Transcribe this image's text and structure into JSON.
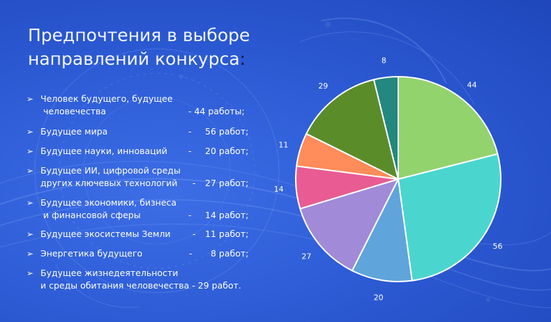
{
  "title": "Предпочтения в выборе направлений конкурса",
  "title_colon": ":",
  "bullet_glyph": "➢",
  "bullets": [
    {
      "lines": [
        "Человек будущего, будущее",
        " человечества",
        "- 44 работы;"
      ]
    },
    {
      "lines": [
        "Будущее мира",
        "-",
        "56 работ;"
      ]
    },
    {
      "lines": [
        "Будущее науки, инноваций",
        "-",
        "20 работ;"
      ]
    },
    {
      "lines": [
        "Будущее ИИ, цифровой среды",
        "других ключевых технологий",
        "-",
        "27 работ;"
      ]
    },
    {
      "lines": [
        "Будущее экономики, бизнеса",
        " и финансовой сферы",
        "-",
        "14 работ;"
      ]
    },
    {
      "lines": [
        "Будущее экосистемы Земли",
        "-",
        "11 работ;"
      ]
    },
    {
      "lines": [
        "Энергетика будущего",
        "-",
        "8 работ;"
      ]
    },
    {
      "lines": [
        "Будущее жизнедеятельности",
        "и среды обитания человечества -  29 работ."
      ]
    }
  ],
  "chart_data": {
    "type": "pie",
    "title": "",
    "start_angle_deg": 0,
    "direction": "clockwise",
    "slices": [
      {
        "label": "44",
        "value": 44,
        "color": "#92d36e"
      },
      {
        "label": "56",
        "value": 56,
        "color": "#4ad6cf"
      },
      {
        "label": "20",
        "value": 20,
        "color": "#5fa4db"
      },
      {
        "label": "27",
        "value": 27,
        "color": "#a18ad8"
      },
      {
        "label": "14",
        "value": 14,
        "color": "#e85c93"
      },
      {
        "label": "11",
        "value": 11,
        "color": "#ff8c5a"
      },
      {
        "label": "29",
        "value": 29,
        "color": "#5b8c2a"
      },
      {
        "label": "8",
        "value": 8,
        "color": "#23887f"
      }
    ]
  }
}
